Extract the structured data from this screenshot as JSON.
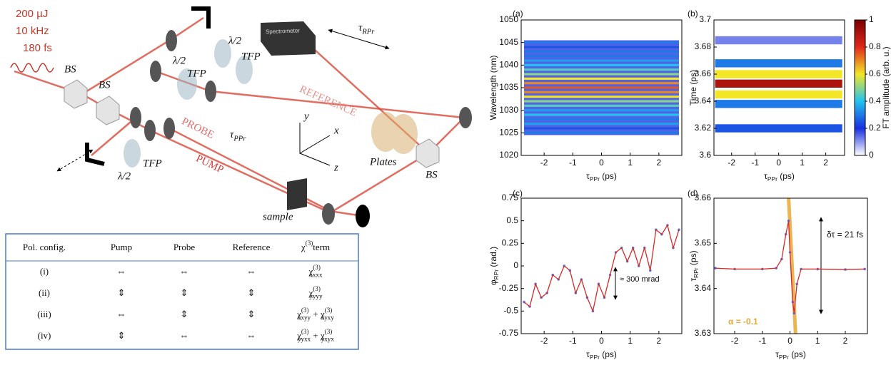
{
  "setup": {
    "laser": [
      "200 µJ",
      "10 kHz",
      "180 fs"
    ],
    "bs": [
      "BS",
      "BS",
      "BS"
    ],
    "halfwave": [
      "λ/2",
      "λ/2",
      "λ/2"
    ],
    "tfp": [
      "TFP",
      "TFP",
      "TFP"
    ],
    "spectrometer": "Spectrometer",
    "tau_rpr": [
      {
        "t": "τ"
      },
      {
        "t": "RPr",
        "pos": "sub"
      }
    ],
    "reference": "REFERENCE",
    "probe": "PROBE",
    "pump": "PUMP",
    "tau_ppr": [
      {
        "t": "τ"
      },
      {
        "t": "PPr",
        "pos": "sub"
      }
    ],
    "axes": [
      "y",
      "x",
      "z"
    ],
    "plates": "Plates",
    "sample": "sample"
  },
  "table": {
    "header": [
      "Pol. config.",
      "Pump",
      "Probe",
      "Reference",
      [
        {
          "t": "χ"
        },
        {
          "t": "(3)",
          "pos": "sup"
        },
        {
          "t": "term"
        }
      ]
    ],
    "rows": [
      [
        "(i)",
        "⇔",
        "⇔",
        "⇔",
        [
          {
            "t": "χ"
          },
          {
            "t": "(3)",
            "pos": "sup"
          },
          {
            "t": "xxxx",
            "pos": "sub"
          }
        ]
      ],
      [
        "(ii)",
        "⇕",
        "⇕",
        "⇕",
        [
          {
            "t": "χ"
          },
          {
            "t": "(3)",
            "pos": "sup"
          },
          {
            "t": "yyyy",
            "pos": "sub"
          }
        ]
      ],
      [
        "(iii)",
        "⇔",
        "⇕",
        "⇕",
        [
          {
            "t": "χ"
          },
          {
            "t": "(3)",
            "pos": "sup"
          },
          {
            "t": "xxyy",
            "pos": "sub"
          },
          {
            "t": " + "
          },
          {
            "t": "χ"
          },
          {
            "t": "(3)",
            "pos": "sup"
          },
          {
            "t": "xyxy",
            "pos": "sub"
          }
        ]
      ],
      [
        "(iv)",
        "⇕",
        "⇔",
        "⇔",
        [
          {
            "t": "χ"
          },
          {
            "t": "(3)",
            "pos": "sup"
          },
          {
            "t": "yyxx",
            "pos": "sub"
          },
          {
            "t": " + "
          },
          {
            "t": "χ"
          },
          {
            "t": "(3)",
            "pos": "sup"
          },
          {
            "t": "yxyx",
            "pos": "sub"
          }
        ]
      ]
    ]
  },
  "panels": [
    {
      "letter": "(a)",
      "xlim": [
        -2.8,
        2.8
      ],
      "ylim": [
        1020,
        1050
      ],
      "xticks": [
        -2,
        -1,
        0,
        1,
        2
      ],
      "yticks": [
        1020,
        1025,
        1030,
        1035,
        1040,
        1045,
        1050
      ],
      "xlabel": [
        {
          "t": "τ"
        },
        {
          "t": "PPr",
          "pos": "sub"
        },
        {
          "t": " (ps)"
        }
      ],
      "ylabel": [
        {
          "t": "Wavelength (nm)"
        }
      ],
      "x_extent": [
        -2.7,
        2.7
      ],
      "rows": [
        1025,
        1026,
        1027,
        1028,
        1029,
        1030,
        1031,
        1032,
        1033,
        1034,
        1035,
        1036,
        1037,
        1038,
        1039,
        1040,
        1041,
        1042,
        1043,
        1044,
        1045
      ],
      "amplitudes": [
        0.3,
        0.25,
        0.35,
        0.3,
        0.4,
        0.35,
        0.45,
        0.5,
        0.6,
        0.7,
        0.75,
        0.7,
        0.6,
        0.5,
        0.45,
        0.4,
        0.35,
        0.3,
        0.3,
        0.25,
        0.3
      ]
    },
    {
      "letter": "(b)",
      "xlim": [
        -2.75,
        2.8
      ],
      "ylim": [
        3.6,
        3.7
      ],
      "xticks": [
        -2,
        -1,
        0,
        1,
        2
      ],
      "yticks": [
        3.6,
        3.62,
        3.64,
        3.66,
        3.68,
        3.7
      ],
      "xlabel": [
        {
          "t": "τ"
        },
        {
          "t": "PPr",
          "pos": "sub"
        },
        {
          "t": " (ps)"
        }
      ],
      "ylabel": [
        {
          "t": "Time (ps)"
        }
      ],
      "x_extent": [
        -2.7,
        2.7
      ],
      "bands": [
        3.62,
        3.638,
        3.645,
        3.653,
        3.66,
        3.668,
        3.685
      ],
      "amplitudes": [
        0.25,
        0.3,
        0.6,
        0.9,
        0.6,
        0.3,
        0.12
      ],
      "colorbar": {
        "label": "FT amplitude (arb. u.)",
        "lim": [
          0,
          1
        ],
        "ticks": [
          0,
          0.2,
          0.4,
          0.6,
          0.8,
          1
        ],
        "colormap": [
          "#ffffff",
          "#1a2fe0",
          "#22c4ee",
          "#f2e626",
          "#e0281a",
          "#7a0000"
        ]
      }
    },
    {
      "letter": "(c)",
      "xlim": [
        -2.8,
        2.8
      ],
      "ylim": [
        -0.75,
        0.75
      ],
      "xticks": [
        -2,
        -1,
        0,
        1,
        2
      ],
      "yticks": [
        -0.75,
        -0.5,
        -0.25,
        0,
        0.25,
        0.5,
        0.75
      ],
      "xlabel": [
        {
          "t": "τ"
        },
        {
          "t": "PPr",
          "pos": "sub"
        },
        {
          "t": " (ps)"
        }
      ],
      "ylabel": [
        {
          "t": "φ"
        },
        {
          "t": "RPr",
          "pos": "sub"
        },
        {
          "t": " (rad.)"
        }
      ],
      "annotation": "≈ 300 mrad",
      "line_color": "#d42a2a",
      "marker_color": "#5a78e6",
      "x": [
        -2.7,
        -2.5,
        -2.3,
        -2.1,
        -1.9,
        -1.7,
        -1.5,
        -1.3,
        -1.1,
        -0.9,
        -0.7,
        -0.5,
        -0.3,
        -0.1,
        0.1,
        0.3,
        0.5,
        0.7,
        0.9,
        1.1,
        1.3,
        1.5,
        1.7,
        1.9,
        2.1,
        2.3,
        2.5,
        2.7
      ],
      "y": [
        -0.4,
        -0.45,
        -0.2,
        -0.35,
        -0.3,
        -0.1,
        -0.15,
        0.0,
        -0.05,
        -0.3,
        -0.15,
        -0.35,
        -0.5,
        -0.2,
        -0.35,
        -0.1,
        0.15,
        0.2,
        0.05,
        0.2,
        0.0,
        0.2,
        -0.05,
        0.4,
        0.35,
        0.45,
        0.2,
        0.4
      ]
    },
    {
      "letter": "(d)",
      "xlim": [
        -2.75,
        2.8
      ],
      "ylim": [
        3.63,
        3.66
      ],
      "xticks": [
        -2,
        -1,
        0,
        1,
        2
      ],
      "yticks": [
        3.63,
        3.64,
        3.65,
        3.66
      ],
      "xlabel": [
        {
          "t": "τ"
        },
        {
          "t": "PPr",
          "pos": "sub"
        },
        {
          "t": " (ps)"
        }
      ],
      "ylabel": [
        {
          "t": "τ"
        },
        {
          "t": "RPr",
          "pos": "sub"
        },
        {
          "t": " (ps)"
        }
      ],
      "annotation": "δτ = 21 fs",
      "alpha_label": "α = -0.1",
      "alpha_color": "#e8a838",
      "alpha_x": [
        -0.05,
        0.2
      ],
      "alpha_y": [
        3.66,
        3.63
      ],
      "line_color": "#d42a2a",
      "marker_color": "#5a78e6",
      "x": [
        -2.7,
        -2,
        -1,
        -0.5,
        -0.3,
        -0.15,
        -0.05,
        0.0,
        0.1,
        0.15,
        0.25,
        0.4,
        1,
        2,
        2.7
      ],
      "y": [
        3.6445,
        3.6443,
        3.6443,
        3.6445,
        3.6465,
        3.652,
        3.655,
        3.648,
        3.637,
        3.6345,
        3.641,
        3.6443,
        3.6443,
        3.6442,
        3.6443
      ]
    }
  ]
}
